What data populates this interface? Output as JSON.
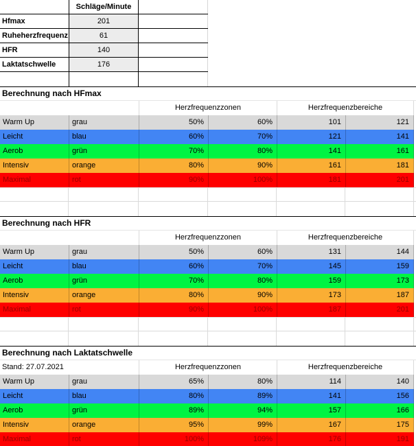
{
  "top_table": {
    "header": "Schläge/Minute",
    "rows": [
      {
        "label": "Hfmax",
        "value": "201"
      },
      {
        "label": "Ruheherzfrequenz",
        "value": "61"
      },
      {
        "label": "HFR",
        "value": "140"
      },
      {
        "label": "Laktatschwelle",
        "value": "176"
      }
    ]
  },
  "columns": {
    "zones_header": "Herzfrequenzzonen",
    "ranges_header": "Herzfrequenzbereiche"
  },
  "palette": {
    "gray": "#d9d9d9",
    "blue": "#4285f4",
    "green": "#00f443",
    "orange": "#faae34",
    "red": "#fe0000",
    "dark_red_text": "#990000",
    "value_cell_bg": "#ececec"
  },
  "sections": [
    {
      "title": "Berechnung nach HFmax",
      "note": "",
      "rows": [
        {
          "zone": "Warm Up",
          "color_name": "grau",
          "color": "#d9d9d9",
          "text_color": "#000000",
          "pct_low": "50%",
          "pct_high": "60%",
          "bpm_low": "101",
          "bpm_high": "121"
        },
        {
          "zone": "Leicht",
          "color_name": "blau",
          "color": "#4285f4",
          "text_color": "#000000",
          "pct_low": "60%",
          "pct_high": "70%",
          "bpm_low": "121",
          "bpm_high": "141"
        },
        {
          "zone": "Aerob",
          "color_name": "grün",
          "color": "#00f443",
          "text_color": "#000000",
          "pct_low": "70%",
          "pct_high": "80%",
          "bpm_low": "141",
          "bpm_high": "161"
        },
        {
          "zone": "Intensiv",
          "color_name": "orange",
          "color": "#faae34",
          "text_color": "#000000",
          "pct_low": "80%",
          "pct_high": "90%",
          "bpm_low": "161",
          "bpm_high": "181"
        },
        {
          "zone": "Maximal",
          "color_name": "rot",
          "color": "#fe0000",
          "text_color": "#990000",
          "pct_low": "90%",
          "pct_high": "100%",
          "bpm_low": "181",
          "bpm_high": "201"
        }
      ]
    },
    {
      "title": "Berechnung nach HFR",
      "note": "",
      "rows": [
        {
          "zone": "Warm Up",
          "color_name": "grau",
          "color": "#d9d9d9",
          "text_color": "#000000",
          "pct_low": "50%",
          "pct_high": "60%",
          "bpm_low": "131",
          "bpm_high": "144"
        },
        {
          "zone": "Leicht",
          "color_name": "blau",
          "color": "#4285f4",
          "text_color": "#000000",
          "pct_low": "60%",
          "pct_high": "70%",
          "bpm_low": "145",
          "bpm_high": "159"
        },
        {
          "zone": "Aerob",
          "color_name": "grün",
          "color": "#00f443",
          "text_color": "#000000",
          "pct_low": "70%",
          "pct_high": "80%",
          "bpm_low": "159",
          "bpm_high": "173"
        },
        {
          "zone": "Intensiv",
          "color_name": "orange",
          "color": "#faae34",
          "text_color": "#000000",
          "pct_low": "80%",
          "pct_high": "90%",
          "bpm_low": "173",
          "bpm_high": "187"
        },
        {
          "zone": "Maximal",
          "color_name": "rot",
          "color": "#fe0000",
          "text_color": "#990000",
          "pct_low": "90%",
          "pct_high": "100%",
          "bpm_low": "187",
          "bpm_high": "201"
        }
      ]
    },
    {
      "title": "Berechnung nach Laktatschwelle",
      "note": "Stand: 27.07.2021",
      "rows": [
        {
          "zone": "Warm Up",
          "color_name": "grau",
          "color": "#d9d9d9",
          "text_color": "#000000",
          "pct_low": "65%",
          "pct_high": "80%",
          "bpm_low": "114",
          "bpm_high": "140"
        },
        {
          "zone": "Leicht",
          "color_name": "blau",
          "color": "#4285f4",
          "text_color": "#000000",
          "pct_low": "80%",
          "pct_high": "89%",
          "bpm_low": "141",
          "bpm_high": "156"
        },
        {
          "zone": "Aerob",
          "color_name": "grün",
          "color": "#00f443",
          "text_color": "#000000",
          "pct_low": "89%",
          "pct_high": "94%",
          "bpm_low": "157",
          "bpm_high": "166"
        },
        {
          "zone": "Intensiv",
          "color_name": "orange",
          "color": "#faae34",
          "text_color": "#000000",
          "pct_low": "95%",
          "pct_high": "99%",
          "bpm_low": "167",
          "bpm_high": "175"
        },
        {
          "zone": "Maximal",
          "color_name": "rot",
          "color": "#fe0000",
          "text_color": "#990000",
          "pct_low": "100%",
          "pct_high": "109%",
          "bpm_low": "176",
          "bpm_high": "191"
        }
      ]
    }
  ]
}
